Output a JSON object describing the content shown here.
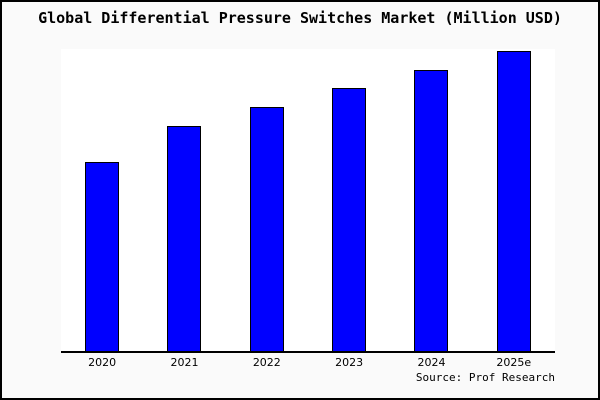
{
  "header": {
    "title": "Global Differential Pressure Switches Market (Million USD)"
  },
  "footer": {
    "source_note": "Source: Prof Research"
  },
  "chart_data": {
    "type": "bar",
    "title": "Global Differential Pressure Switches Market (Million USD)",
    "categories": [
      "2020",
      "2021",
      "2022",
      "2023",
      "2024",
      "2025e"
    ],
    "values": [
      62.7,
      74.6,
      80.9,
      87.1,
      93.1,
      99.3
    ],
    "value_note": "No y-axis scale or data labels are shown in the image; values are relative bar heights in percent of plot height",
    "xlabel": "",
    "ylabel": "",
    "ylim": [
      0,
      100
    ],
    "grid": false,
    "legend": false,
    "y_axis_visible": false,
    "bar_color": "#0000ff",
    "bar_border_color": "#000000",
    "axis_line_color": "#000000",
    "frame_background_color": "#fafafa",
    "plot_background_color": "#ffffff",
    "source_note": "Source: Prof Research"
  }
}
